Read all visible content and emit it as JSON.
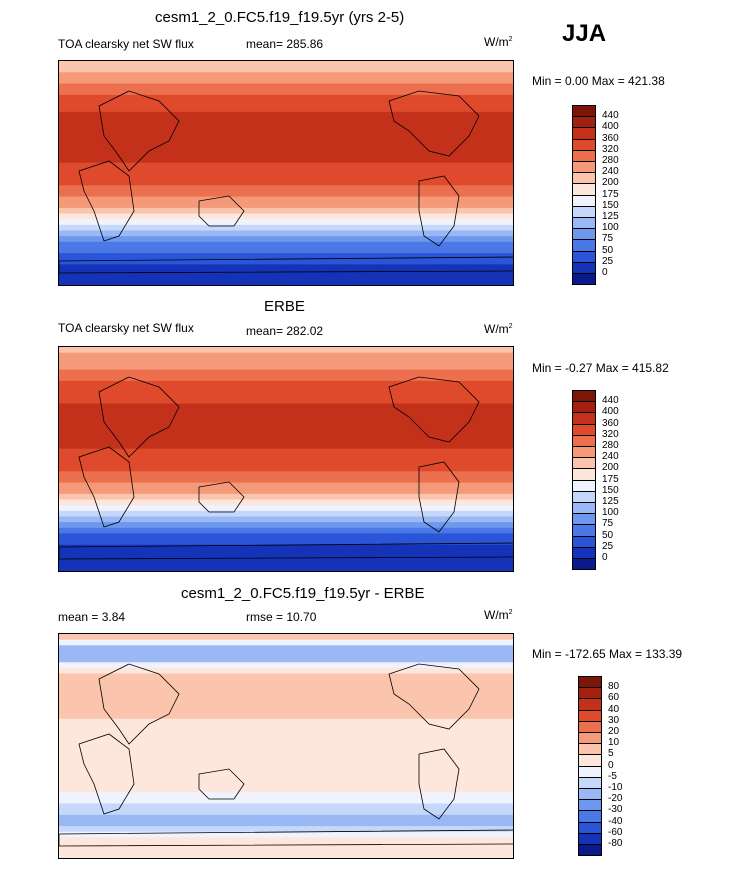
{
  "season": "JJA",
  "units": "W/m",
  "units_sup": "2",
  "panels": [
    {
      "title": "cesm1_2_0.FC5.f19_f19.5yr (yrs 2-5)",
      "subtitle": "TOA clearsky net SW flux",
      "mean_text": "mean= 285.86",
      "minmax_text": "Min =   0.00 Max = 421.38"
    },
    {
      "title": "ERBE",
      "subtitle": "TOA clearsky net SW flux",
      "mean_text": "mean= 282.02",
      "minmax_text": "Min =  -0.27 Max = 415.82"
    },
    {
      "title": "cesm1_2_0.FC5.f19_f19.5yr - ERBE",
      "mean_text": "mean =   3.84",
      "rmse_text": "rmse =  10.70",
      "minmax_text": "Min = -172.65 Max = 133.39"
    }
  ],
  "chart_data": [
    {
      "type": "heatmap",
      "title": "cesm1_2_0.FC5.f19_f19.5yr (yrs 2-5)",
      "subtitle": "TOA clearsky net SW flux",
      "units": "W/m2",
      "mean": 285.86,
      "min": 0.0,
      "max": 421.38,
      "colorbar_levels": [
        0,
        25,
        50,
        75,
        100,
        125,
        150,
        175,
        200,
        240,
        280,
        320,
        360,
        400,
        440
      ],
      "colorbar_colors": [
        "#0a1a8c",
        "#1433b8",
        "#2a55d8",
        "#4a78e6",
        "#6e98ee",
        "#9ab8f4",
        "#c6d8fa",
        "#eef3fd",
        "#fde6dc",
        "#fbc5ad",
        "#f59a79",
        "#ec6f4e",
        "#df4a2c",
        "#c4311b",
        "#a1200f",
        "#7d1608"
      ],
      "zonal_profile": [
        {
          "lat": 90,
          "value": 220
        },
        {
          "lat": 75,
          "value": 260
        },
        {
          "lat": 60,
          "value": 330
        },
        {
          "lat": 45,
          "value": 370
        },
        {
          "lat": 30,
          "value": 395
        },
        {
          "lat": 15,
          "value": 370
        },
        {
          "lat": 0,
          "value": 340
        },
        {
          "lat": -15,
          "value": 300
        },
        {
          "lat": -30,
          "value": 215
        },
        {
          "lat": -45,
          "value": 120
        },
        {
          "lat": -60,
          "value": 55
        },
        {
          "lat": -75,
          "value": 10
        },
        {
          "lat": -90,
          "value": 0
        }
      ]
    },
    {
      "type": "heatmap",
      "title": "ERBE",
      "subtitle": "TOA clearsky net SW flux",
      "units": "W/m2",
      "mean": 282.02,
      "min": -0.27,
      "max": 415.82,
      "colorbar_levels": [
        0,
        25,
        50,
        75,
        100,
        125,
        150,
        175,
        200,
        240,
        280,
        320,
        360,
        400,
        440
      ],
      "colorbar_colors": [
        "#0a1a8c",
        "#1433b8",
        "#2a55d8",
        "#4a78e6",
        "#6e98ee",
        "#9ab8f4",
        "#c6d8fa",
        "#eef3fd",
        "#fde6dc",
        "#fbc5ad",
        "#f59a79",
        "#ec6f4e",
        "#df4a2c",
        "#c4311b",
        "#a1200f",
        "#7d1608"
      ],
      "zonal_profile": [
        {
          "lat": 90,
          "value": 230
        },
        {
          "lat": 75,
          "value": 265
        },
        {
          "lat": 60,
          "value": 325
        },
        {
          "lat": 45,
          "value": 365
        },
        {
          "lat": 30,
          "value": 390
        },
        {
          "lat": 15,
          "value": 368
        },
        {
          "lat": 0,
          "value": 338
        },
        {
          "lat": -15,
          "value": 298
        },
        {
          "lat": -30,
          "value": 212
        },
        {
          "lat": -45,
          "value": 118
        },
        {
          "lat": -60,
          "value": 50
        },
        {
          "lat": -75,
          "value": 8
        },
        {
          "lat": -90,
          "value": 0
        }
      ]
    },
    {
      "type": "heatmap",
      "title": "cesm1_2_0.FC5.f19_f19.5yr - ERBE",
      "units": "W/m2",
      "mean": 3.84,
      "rmse": 10.7,
      "min": -172.65,
      "max": 133.39,
      "colorbar_levels": [
        -80,
        -60,
        -40,
        -30,
        -20,
        -10,
        -5,
        0,
        5,
        10,
        20,
        30,
        40,
        60,
        80
      ],
      "colorbar_colors": [
        "#0a1a8c",
        "#1433b8",
        "#2a55d8",
        "#4a78e6",
        "#6e98ee",
        "#9ab8f4",
        "#c6d8fa",
        "#eef3fd",
        "#fde6dc",
        "#fbc5ad",
        "#f59a79",
        "#ec6f4e",
        "#df4a2c",
        "#c4311b",
        "#a1200f",
        "#7d1608"
      ],
      "zonal_profile": [
        {
          "lat": 90,
          "value": 10
        },
        {
          "lat": 75,
          "value": -20
        },
        {
          "lat": 60,
          "value": 5
        },
        {
          "lat": 45,
          "value": 8
        },
        {
          "lat": 30,
          "value": 6
        },
        {
          "lat": 15,
          "value": 4
        },
        {
          "lat": 0,
          "value": 3
        },
        {
          "lat": -15,
          "value": 4
        },
        {
          "lat": -30,
          "value": 2
        },
        {
          "lat": -45,
          "value": -4
        },
        {
          "lat": -60,
          "value": -15
        },
        {
          "lat": -75,
          "value": 2
        },
        {
          "lat": -90,
          "value": 0
        }
      ]
    }
  ]
}
